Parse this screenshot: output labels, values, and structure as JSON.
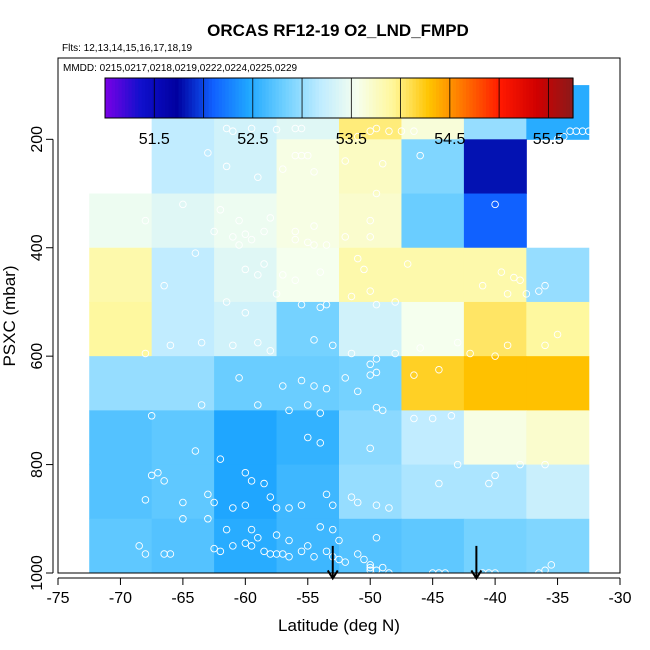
{
  "chart_data": {
    "type": "heatmap",
    "title": "ORCAS RF12-19 O2_LND_FMPD",
    "subtitle_flights": "Flts: 12,13,14,15,16,17,18,19",
    "subtitle_dates": "MMDD: 0215,0217,0218,0219,0222,0224,0225,0229",
    "xlabel": "Latitude (deg N)",
    "ylabel": "PSXC (mbar)",
    "xlim": [
      -75,
      -30
    ],
    "ylim": [
      1000,
      50
    ],
    "y_inverted": true,
    "x_ticks": [
      -75,
      -70,
      -65,
      -60,
      -55,
      -50,
      -45,
      -40,
      -35,
      -30
    ],
    "x_tick_labels": [
      "-75",
      "-70",
      "-65",
      "-60",
      "-55",
      "-50",
      "-45",
      "-40",
      "-35",
      "-30"
    ],
    "y_ticks": [
      200,
      400,
      600,
      800,
      1000
    ],
    "y_tick_labels": [
      "200",
      "400",
      "600",
      "800",
      "1000"
    ],
    "colorbar": {
      "range": [
        51.0,
        55.75
      ],
      "ticks": [
        51.5,
        52.5,
        53.5,
        54.5,
        55.5
      ],
      "tick_labels": [
        "51.5",
        "52.5",
        "53.5",
        "54.5",
        "55.5"
      ],
      "palette": [
        "#7a00e6",
        "#1010cc",
        "#0000a0",
        "#1060ff",
        "#20a8ff",
        "#70d0ff",
        "#c0ecff",
        "#f6ffee",
        "#fff79a",
        "#ffc400",
        "#ff7000",
        "#ff1800",
        "#d00000",
        "#8b1a1a"
      ]
    },
    "cell_size": {
      "lat": 5,
      "pres": 100
    },
    "cells": [
      {
        "lat": -65,
        "p": 150,
        "v": 53.2
      },
      {
        "lat": -60,
        "p": 150,
        "v": 53.3
      },
      {
        "lat": -55,
        "p": 150,
        "v": 53.4
      },
      {
        "lat": -50,
        "p": 150,
        "v": 54.0
      },
      {
        "lat": -45,
        "p": 150,
        "v": 53.65
      },
      {
        "lat": -40,
        "p": 150,
        "v": 53.0
      },
      {
        "lat": -35,
        "p": 150,
        "v": 52.5
      },
      {
        "lat": -65,
        "p": 250,
        "v": 53.2
      },
      {
        "lat": -60,
        "p": 250,
        "v": 53.3
      },
      {
        "lat": -55,
        "p": 250,
        "v": 53.6
      },
      {
        "lat": -50,
        "p": 250,
        "v": 53.75
      },
      {
        "lat": -45,
        "p": 250,
        "v": 52.9
      },
      {
        "lat": -40,
        "p": 250,
        "v": 51.8
      },
      {
        "lat": -70,
        "p": 350,
        "v": 53.5
      },
      {
        "lat": -65,
        "p": 350,
        "v": 53.4
      },
      {
        "lat": -60,
        "p": 350,
        "v": 53.5
      },
      {
        "lat": -55,
        "p": 350,
        "v": 53.6
      },
      {
        "lat": -50,
        "p": 350,
        "v": 53.7
      },
      {
        "lat": -45,
        "p": 350,
        "v": 52.8
      },
      {
        "lat": -40,
        "p": 350,
        "v": 52.1
      },
      {
        "lat": -70,
        "p": 450,
        "v": 53.85
      },
      {
        "lat": -65,
        "p": 450,
        "v": 53.2
      },
      {
        "lat": -60,
        "p": 450,
        "v": 53.4
      },
      {
        "lat": -55,
        "p": 450,
        "v": 53.55
      },
      {
        "lat": -50,
        "p": 450,
        "v": 53.85
      },
      {
        "lat": -45,
        "p": 450,
        "v": 53.85
      },
      {
        "lat": -40,
        "p": 450,
        "v": 53.85
      },
      {
        "lat": -35,
        "p": 450,
        "v": 53.0
      },
      {
        "lat": -70,
        "p": 550,
        "v": 53.9
      },
      {
        "lat": -65,
        "p": 550,
        "v": 53.2
      },
      {
        "lat": -60,
        "p": 550,
        "v": 53.3
      },
      {
        "lat": -55,
        "p": 550,
        "v": 52.85
      },
      {
        "lat": -50,
        "p": 550,
        "v": 53.3
      },
      {
        "lat": -45,
        "p": 550,
        "v": 53.55
      },
      {
        "lat": -40,
        "p": 550,
        "v": 54.05
      },
      {
        "lat": -35,
        "p": 550,
        "v": 53.9
      },
      {
        "lat": -70,
        "p": 650,
        "v": 53.0
      },
      {
        "lat": -65,
        "p": 650,
        "v": 53.0
      },
      {
        "lat": -60,
        "p": 650,
        "v": 52.8
      },
      {
        "lat": -55,
        "p": 650,
        "v": 52.8
      },
      {
        "lat": -50,
        "p": 650,
        "v": 52.85
      },
      {
        "lat": -45,
        "p": 650,
        "v": 54.2
      },
      {
        "lat": -40,
        "p": 650,
        "v": 54.3
      },
      {
        "lat": -35,
        "p": 650,
        "v": 54.3
      },
      {
        "lat": -70,
        "p": 750,
        "v": 52.7
      },
      {
        "lat": -65,
        "p": 750,
        "v": 52.75
      },
      {
        "lat": -60,
        "p": 750,
        "v": 52.45
      },
      {
        "lat": -55,
        "p": 750,
        "v": 52.55
      },
      {
        "lat": -50,
        "p": 750,
        "v": 52.95
      },
      {
        "lat": -45,
        "p": 750,
        "v": 53.2
      },
      {
        "lat": -40,
        "p": 750,
        "v": 53.6
      },
      {
        "lat": -35,
        "p": 750,
        "v": 53.7
      },
      {
        "lat": -70,
        "p": 850,
        "v": 52.7
      },
      {
        "lat": -65,
        "p": 850,
        "v": 52.75
      },
      {
        "lat": -60,
        "p": 850,
        "v": 52.45
      },
      {
        "lat": -55,
        "p": 850,
        "v": 52.6
      },
      {
        "lat": -50,
        "p": 850,
        "v": 53.0
      },
      {
        "lat": -45,
        "p": 850,
        "v": 53.1
      },
      {
        "lat": -40,
        "p": 850,
        "v": 53.1
      },
      {
        "lat": -35,
        "p": 850,
        "v": 53.25
      },
      {
        "lat": -70,
        "p": 950,
        "v": 52.75
      },
      {
        "lat": -65,
        "p": 950,
        "v": 52.7
      },
      {
        "lat": -60,
        "p": 950,
        "v": 52.5
      },
      {
        "lat": -55,
        "p": 950,
        "v": 52.6
      },
      {
        "lat": -50,
        "p": 950,
        "v": 52.7
      },
      {
        "lat": -45,
        "p": 950,
        "v": 52.75
      },
      {
        "lat": -40,
        "p": 950,
        "v": 52.85
      },
      {
        "lat": -35,
        "p": 950,
        "v": 52.9
      }
    ],
    "sample_points": [
      [
        -61.5,
        180
      ],
      [
        -61,
        185
      ],
      [
        -59.5,
        180
      ],
      [
        -57.5,
        182
      ],
      [
        -56,
        180
      ],
      [
        -55.5,
        180
      ],
      [
        -51,
        195
      ],
      [
        -50,
        185
      ],
      [
        -49.5,
        180
      ],
      [
        -48.5,
        185
      ],
      [
        -47.5,
        185
      ],
      [
        -46.5,
        185
      ],
      [
        -34.5,
        195
      ],
      [
        -34,
        185
      ],
      [
        -33.5,
        185
      ],
      [
        -33,
        185
      ],
      [
        -32.5,
        185
      ],
      [
        -32,
        185
      ],
      [
        -31.5,
        185
      ],
      [
        -31,
        185
      ],
      [
        -30.5,
        185
      ],
      [
        -30,
        185
      ],
      [
        -35,
        200
      ],
      [
        -63,
        225
      ],
      [
        -56,
        230
      ],
      [
        -55.5,
        230
      ],
      [
        -55,
        230
      ],
      [
        -52,
        240
      ],
      [
        -59,
        270
      ],
      [
        -61.5,
        250
      ],
      [
        -57,
        255
      ],
      [
        -54.5,
        260
      ],
      [
        -49,
        245
      ],
      [
        -46,
        230
      ],
      [
        -65,
        320
      ],
      [
        -68,
        350
      ],
      [
        -62,
        330
      ],
      [
        -62.5,
        370
      ],
      [
        -60.5,
        350
      ],
      [
        -58,
        345
      ],
      [
        -56,
        370
      ],
      [
        -54.5,
        360
      ],
      [
        -50,
        350
      ],
      [
        -49.5,
        300
      ],
      [
        -40,
        320
      ],
      [
        -37,
        320
      ],
      [
        -36,
        290
      ],
      [
        -35,
        280
      ],
      [
        -60,
        375
      ],
      [
        -59.5,
        385
      ],
      [
        -61,
        380
      ],
      [
        -60.5,
        395
      ],
      [
        -58.5,
        370
      ],
      [
        -56,
        385
      ],
      [
        -55,
        390
      ],
      [
        -54.5,
        395
      ],
      [
        -53.5,
        395
      ],
      [
        -52,
        380
      ],
      [
        -50,
        380
      ],
      [
        -64,
        410
      ],
      [
        -60,
        440
      ],
      [
        -58.5,
        430
      ],
      [
        -59,
        450
      ],
      [
        -57,
        450
      ],
      [
        -56,
        460
      ],
      [
        -54,
        445
      ],
      [
        -51,
        420
      ],
      [
        -50.5,
        440
      ],
      [
        -47,
        430
      ],
      [
        -39.5,
        445
      ],
      [
        -38.5,
        455
      ],
      [
        -38,
        460
      ],
      [
        -41,
        470
      ],
      [
        -39,
        485
      ],
      [
        -37.5,
        485
      ],
      [
        -36.5,
        480
      ],
      [
        -36,
        470
      ],
      [
        -66.5,
        470
      ],
      [
        -61.5,
        500
      ],
      [
        -60,
        520
      ],
      [
        -57.5,
        485
      ],
      [
        -55.5,
        505
      ],
      [
        -54,
        510
      ],
      [
        -53.5,
        505
      ],
      [
        -51.5,
        490
      ],
      [
        -50,
        480
      ],
      [
        -49.5,
        505
      ],
      [
        -48,
        500
      ],
      [
        -68,
        595
      ],
      [
        -66,
        580
      ],
      [
        -63.5,
        575
      ],
      [
        -61,
        580
      ],
      [
        -59,
        575
      ],
      [
        -58,
        590
      ],
      [
        -54.5,
        570
      ],
      [
        -53,
        580
      ],
      [
        -51.5,
        595
      ],
      [
        -50,
        615
      ],
      [
        -49.5,
        605
      ],
      [
        -48,
        595
      ],
      [
        -46,
        585
      ],
      [
        -44.5,
        625
      ],
      [
        -43,
        575
      ],
      [
        -42,
        595
      ],
      [
        -40,
        600
      ],
      [
        -39,
        580
      ],
      [
        -36,
        580
      ],
      [
        -35,
        560
      ],
      [
        -60.5,
        640
      ],
      [
        -57,
        655
      ],
      [
        -55.5,
        645
      ],
      [
        -54.5,
        655
      ],
      [
        -53.5,
        660
      ],
      [
        -52,
        640
      ],
      [
        -50,
        635
      ],
      [
        -49.5,
        630
      ],
      [
        -51,
        665
      ],
      [
        -46.5,
        635
      ],
      [
        -67.5,
        710
      ],
      [
        -63.5,
        690
      ],
      [
        -59,
        690
      ],
      [
        -56.5,
        700
      ],
      [
        -55,
        690
      ],
      [
        -54,
        705
      ],
      [
        -49.5,
        695
      ],
      [
        -49,
        700
      ],
      [
        -46.5,
        715
      ],
      [
        -45,
        715
      ],
      [
        -43.5,
        710
      ],
      [
        -67.5,
        820
      ],
      [
        -67,
        815
      ],
      [
        -66.5,
        830
      ],
      [
        -64,
        775
      ],
      [
        -62,
        790
      ],
      [
        -60,
        815
      ],
      [
        -59.5,
        830
      ],
      [
        -58.5,
        835
      ],
      [
        -55,
        750
      ],
      [
        -54,
        760
      ],
      [
        -50,
        770
      ],
      [
        -44.5,
        835
      ],
      [
        -43,
        800
      ],
      [
        -40.5,
        835
      ],
      [
        -40,
        820
      ],
      [
        -38,
        800
      ],
      [
        -36,
        800
      ],
      [
        -68,
        865
      ],
      [
        -65,
        870
      ],
      [
        -63,
        855
      ],
      [
        -62.5,
        870
      ],
      [
        -61,
        880
      ],
      [
        -60,
        875
      ],
      [
        -58,
        860
      ],
      [
        -57.5,
        880
      ],
      [
        -56.5,
        880
      ],
      [
        -55.5,
        875
      ],
      [
        -53.5,
        855
      ],
      [
        -53,
        875
      ],
      [
        -51.5,
        860
      ],
      [
        -51,
        870
      ],
      [
        -49.5,
        875
      ],
      [
        -48.5,
        880
      ],
      [
        -65,
        900
      ],
      [
        -63,
        900
      ],
      [
        -61.5,
        920
      ],
      [
        -59.5,
        920
      ],
      [
        -59,
        935
      ],
      [
        -57.5,
        930
      ],
      [
        -56.5,
        940
      ],
      [
        -54,
        915
      ],
      [
        -53,
        920
      ],
      [
        -52.5,
        940
      ],
      [
        -49.5,
        935
      ],
      [
        -68.5,
        950
      ],
      [
        -68,
        965
      ],
      [
        -66.5,
        965
      ],
      [
        -66,
        965
      ],
      [
        -62.5,
        955
      ],
      [
        -62,
        960
      ],
      [
        -61,
        950
      ],
      [
        -60,
        945
      ],
      [
        -59.5,
        950
      ],
      [
        -58.5,
        960
      ],
      [
        -58,
        965
      ],
      [
        -57.5,
        965
      ],
      [
        -57,
        965
      ],
      [
        -56.5,
        970
      ],
      [
        -55.5,
        960
      ],
      [
        -55,
        950
      ],
      [
        -54.5,
        970
      ],
      [
        -53.5,
        960
      ],
      [
        -53,
        970
      ],
      [
        -52.5,
        975
      ],
      [
        -52,
        980
      ],
      [
        -51,
        965
      ],
      [
        -50.5,
        975
      ],
      [
        -50,
        985
      ],
      [
        -50,
        990
      ],
      [
        -50,
        995
      ],
      [
        -49.5,
        995
      ],
      [
        -49,
        990
      ],
      [
        -48.5,
        1000
      ],
      [
        -45,
        1000
      ],
      [
        -44.5,
        1000
      ],
      [
        -44,
        1000
      ],
      [
        -41,
        1000
      ],
      [
        -40.5,
        1000
      ],
      [
        -40,
        1000
      ],
      [
        -36.5,
        1000
      ],
      [
        -36,
        995
      ],
      [
        -35.5,
        985
      ]
    ],
    "arrows": [
      {
        "lat": -53,
        "p_top": 950,
        "p_bottom": 1010
      },
      {
        "lat": -41.5,
        "p_top": 950,
        "p_bottom": 1010
      }
    ]
  }
}
